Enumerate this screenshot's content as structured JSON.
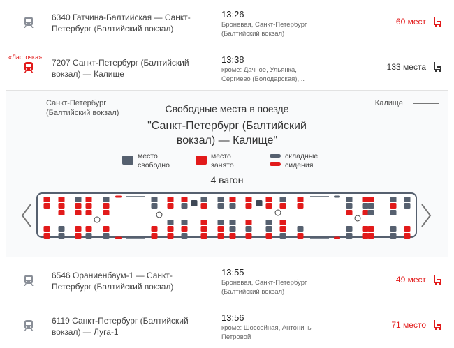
{
  "colors": {
    "free": "#56606f",
    "occupied": "#e21a1a",
    "accent": "#e21a1a",
    "text": "#333333"
  },
  "trains": [
    {
      "name": "6340 Гатчина-Балтийская — Санкт-Петербург (Балтийский вокзал)",
      "time": "13:26",
      "via": "Броневая, Санкт-Петербург (Балтийский вокзал)",
      "seats": "60 мест",
      "seats_color": "#e21a1a",
      "icon": "train-icon"
    },
    {
      "badge": "«Ласточка»",
      "name": "7207 Санкт-Петербург (Балтийский вокзал) — Калище",
      "time": "13:38",
      "via": "кроме: Дачное, Ульянка, Сергиево (Володарская),...",
      "seats": "133 места",
      "seats_color": "#333333",
      "icon": "train-icon"
    },
    {
      "name": "6546 Ораниенбаум-1 — Санкт-Петербург (Балтийский вокзал)",
      "time": "13:55",
      "via": "Броневая, Санкт-Петербург (Балтийский вокзал)",
      "seats": "49 мест",
      "seats_color": "#e21a1a",
      "icon": "train-icon"
    },
    {
      "name": "6119 Санкт-Петербург (Балтийский вокзал) — Луга-1",
      "time": "13:56",
      "via": "кроме: Шоссейная, Антонины Петровой",
      "seats": "71 место",
      "seats_color": "#e21a1a",
      "icon": "train-icon"
    }
  ],
  "panel": {
    "from": "Санкт-Петербург (Балтийский вокзал)",
    "to": "Калище",
    "heading": "Свободные места в поезде",
    "route": "\"Санкт-Петербург (Балтийский вокзал) — Калище\"",
    "legend": {
      "free": "место свободно",
      "occupied": "место занято",
      "folding": "складные сидения"
    },
    "car": "4 вагон",
    "seat_columns": [
      "oo..oo",
      "ooo.ff",
      "foo.oo",
      "ooo.of",
      "foo.of",
      "ff..oo",
      "oo.foo",
      "of.fof",
      "fo.ooo",
      "ff.foo",
      "of.ffo",
      "oo.ofo",
      "oo.ffo",
      "fo.oof",
      "oo..fo",
      "ffo.ff",
      "ofo.oo",
      "off.oo",
      "fof.ff",
      "ff..oo"
    ]
  }
}
